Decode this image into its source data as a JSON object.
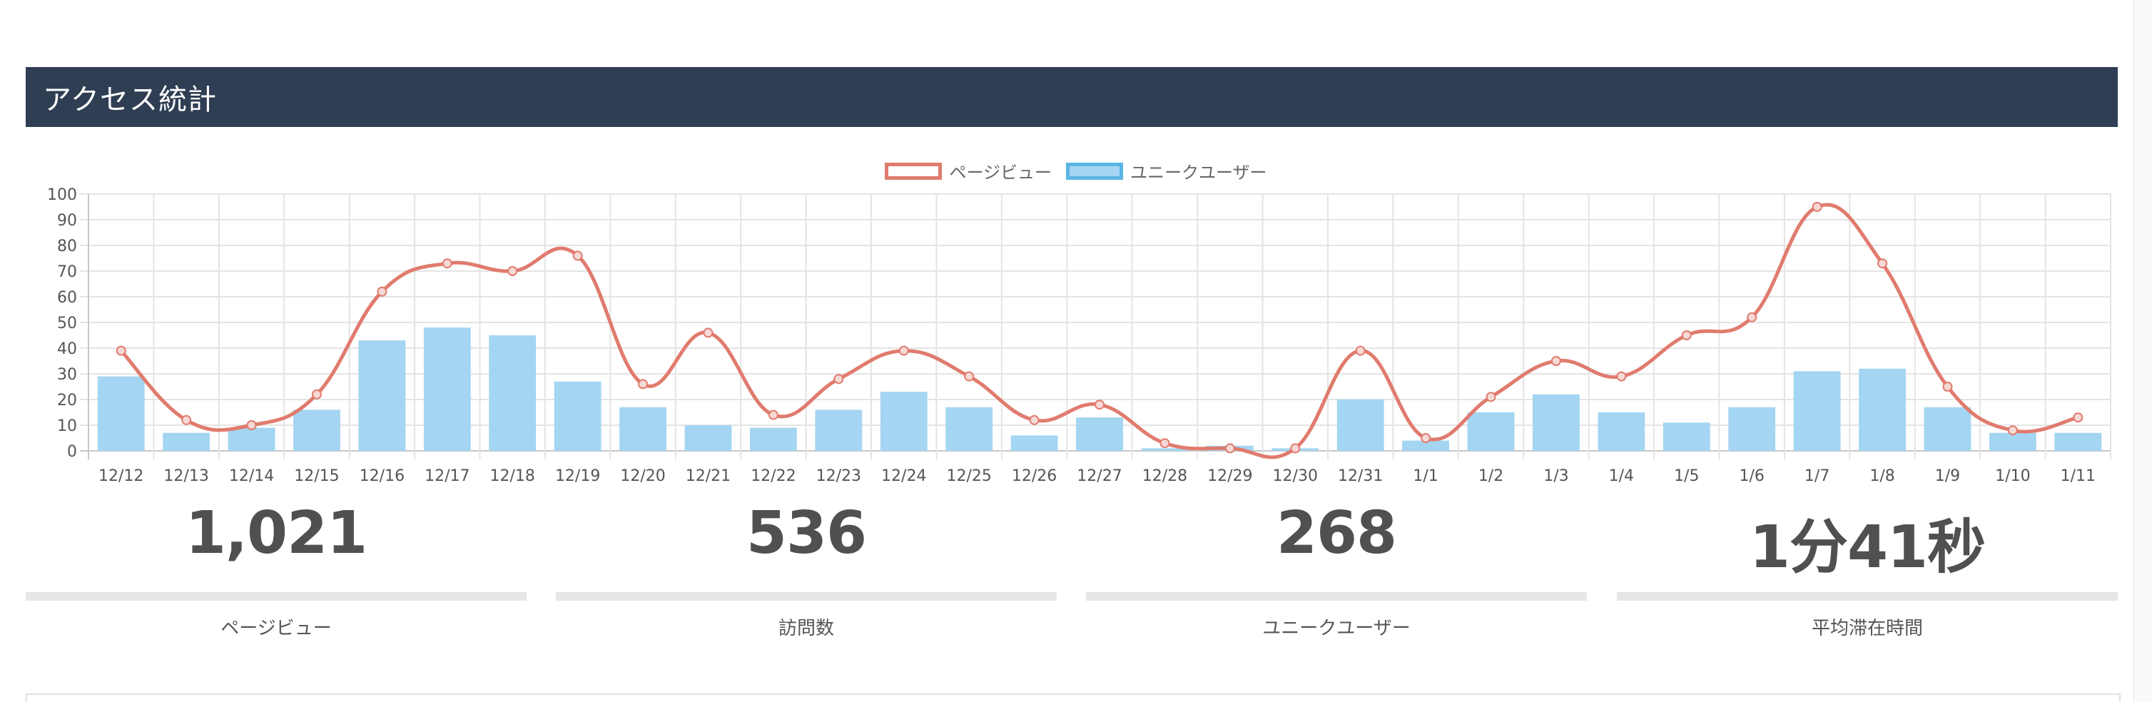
{
  "panel": {
    "title": "アクセス統計"
  },
  "colors": {
    "header_bg": "#2f3e53",
    "line": "#e07b6e",
    "bar_fill": "#a4d5f2",
    "bar_border": "#5ab4e5",
    "stat_text": "#505050"
  },
  "chart_data": {
    "type": "bar",
    "categories": [
      "12/12",
      "12/13",
      "12/14",
      "12/15",
      "12/16",
      "12/17",
      "12/18",
      "12/19",
      "12/20",
      "12/21",
      "12/22",
      "12/23",
      "12/24",
      "12/25",
      "12/26",
      "12/27",
      "12/28",
      "12/29",
      "12/30",
      "12/31",
      "1/1",
      "1/2",
      "1/3",
      "1/4",
      "1/5",
      "1/6",
      "1/7",
      "1/8",
      "1/9",
      "1/10",
      "1/11"
    ],
    "series": [
      {
        "name": "ページビュー",
        "type": "line",
        "values": [
          39,
          12,
          10,
          22,
          62,
          73,
          70,
          76,
          26,
          46,
          14,
          28,
          39,
          29,
          12,
          18,
          3,
          1,
          1,
          39,
          5,
          21,
          35,
          29,
          45,
          52,
          95,
          73,
          25,
          8,
          13
        ]
      },
      {
        "name": "ユニークユーザー",
        "type": "bar",
        "values": [
          29,
          7,
          9,
          16,
          43,
          48,
          45,
          27,
          17,
          10,
          9,
          16,
          23,
          17,
          6,
          13,
          1,
          2,
          1,
          20,
          4,
          15,
          22,
          15,
          11,
          17,
          31,
          32,
          17,
          7,
          7
        ]
      }
    ],
    "ylim": [
      0,
      100
    ],
    "yticks": [
      0,
      10,
      20,
      30,
      40,
      50,
      60,
      70,
      80,
      90,
      100
    ],
    "grid": true,
    "legend": "top-center"
  },
  "stats": [
    {
      "value": "1,021",
      "label": "ページビュー"
    },
    {
      "value": "536",
      "label": "訪問数"
    },
    {
      "value": "268",
      "label": "ユニークユーザー"
    },
    {
      "value": "1分41秒",
      "label": "平均滞在時間"
    }
  ]
}
